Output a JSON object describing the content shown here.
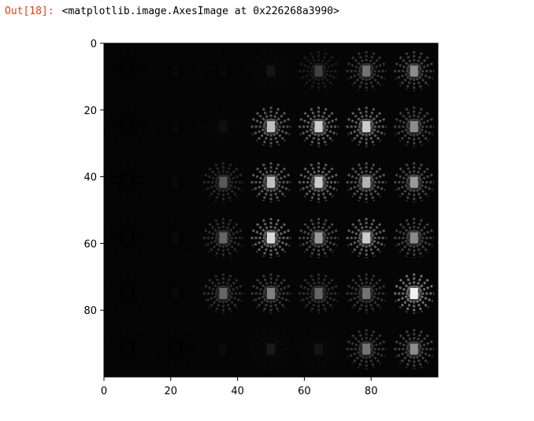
{
  "cell": {
    "prompt": "Out[18]:",
    "result_text": "<matplotlib.image.AxesImage at 0x226268a3990>"
  },
  "image_plot": {
    "extent": [
      0,
      100
    ],
    "x_ticks": [
      "0",
      "20",
      "40",
      "60",
      "80"
    ],
    "y_ticks": [
      "0",
      "20",
      "40",
      "60",
      "80"
    ],
    "x_tick_values": [
      0,
      20,
      40,
      60,
      80
    ],
    "y_tick_values": [
      0,
      20,
      40,
      60,
      80
    ],
    "grid": [
      [
        0.02,
        0.03,
        0.03,
        0.08,
        0.25,
        0.45,
        0.55
      ],
      [
        0.02,
        0.03,
        0.06,
        0.75,
        0.8,
        0.8,
        0.55
      ],
      [
        0.02,
        0.03,
        0.35,
        0.75,
        0.8,
        0.7,
        0.6
      ],
      [
        0.02,
        0.03,
        0.4,
        0.85,
        0.6,
        0.8,
        0.55
      ],
      [
        0.02,
        0.03,
        0.4,
        0.5,
        0.4,
        0.45,
        0.95
      ],
      [
        0.02,
        0.02,
        0.04,
        0.1,
        0.08,
        0.45,
        0.55
      ]
    ],
    "colors": {
      "background": "#050505",
      "axes_frame": "#000000"
    }
  }
}
